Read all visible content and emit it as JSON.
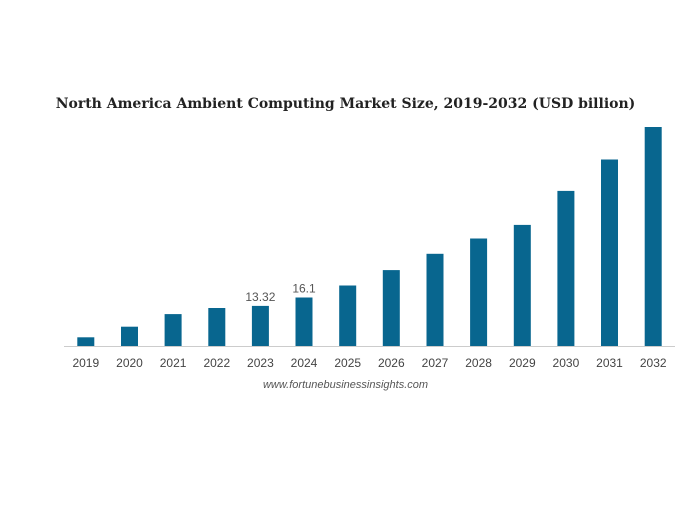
{
  "chart_data": {
    "type": "bar",
    "title": "North America Ambient Computing Market Size, 2019-2032 (USD billion)",
    "categories": [
      "2019",
      "2020",
      "2021",
      "2022",
      "2023",
      "2024",
      "2025",
      "2026",
      "2027",
      "2028",
      "2029",
      "2030",
      "2031",
      "2032"
    ],
    "values": [
      2.9,
      6.4,
      10.6,
      12.6,
      13.32,
      16.1,
      20.1,
      25.2,
      30.6,
      35.7,
      40.2,
      51.5,
      61.9,
      72.7
    ],
    "data_labels": {
      "2023": "13.32",
      "2024": "16.1"
    },
    "ylim": [
      0,
      72.7
    ],
    "grid": false,
    "bar_color": "#08668f",
    "axis_color": "#cccccc",
    "xlabel": "",
    "ylabel": ""
  },
  "source": "www.fortunebusinessinsights.com"
}
